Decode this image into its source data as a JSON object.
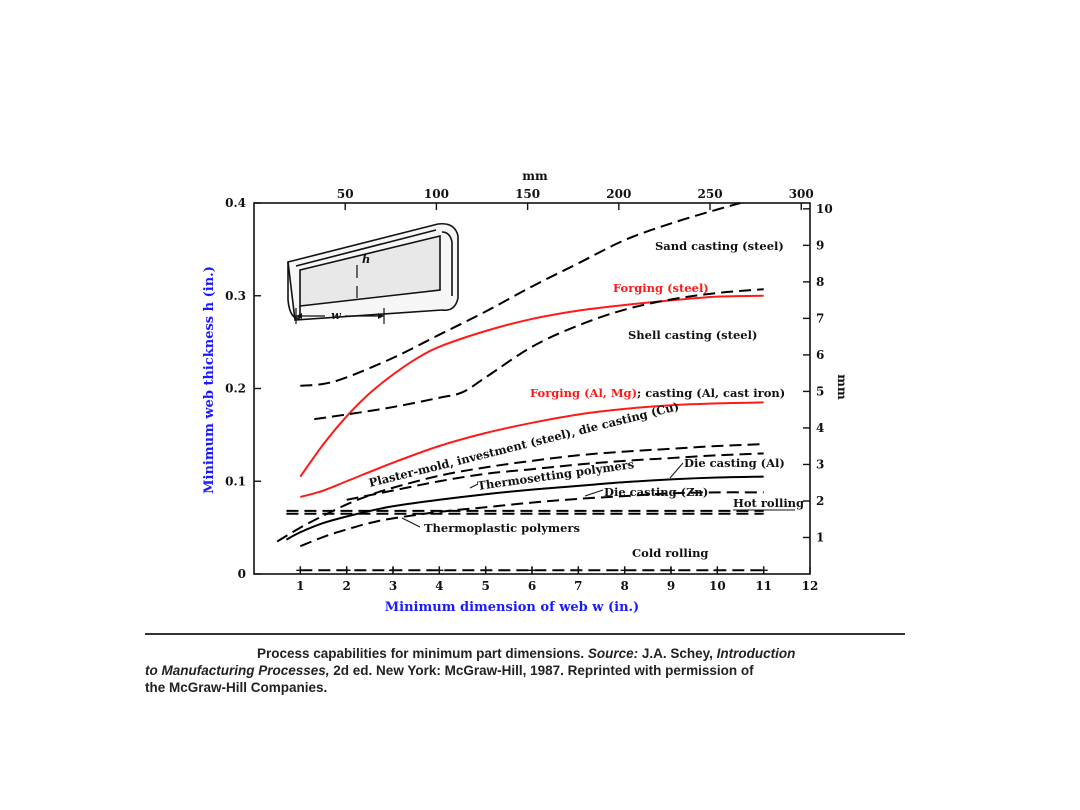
{
  "chart_data": {
    "type": "line",
    "xlabel": "Minimum dimension of web w (in.)",
    "ylabel": "Minimum web thickness h (in.)",
    "top_axis_unit": "mm",
    "right_axis_unit": "mm",
    "xlim": [
      0,
      12
    ],
    "ylim": [
      0,
      0.4
    ],
    "x_ticks": [
      "1",
      "2",
      "3",
      "4",
      "5",
      "6",
      "7",
      "8",
      "9",
      "10",
      "11",
      "12"
    ],
    "y_ticks": [
      "0",
      "0.1",
      "0.2",
      "0.3",
      "0.4"
    ],
    "top_ticks": [
      "50",
      "100",
      "150",
      "200",
      "250",
      "300"
    ],
    "right_ticks": [
      "1",
      "2",
      "3",
      "4",
      "5",
      "6",
      "7",
      "8",
      "9",
      "10"
    ],
    "inset_labels": {
      "h": "h",
      "w": "w"
    },
    "axis_color": "#1a1aff",
    "forging_color": "#ff1a1a",
    "series": [
      {
        "name": "Sand casting (steel)",
        "style": "dashed",
        "color": "#000000",
        "x": [
          1,
          1.5,
          2,
          3,
          4,
          5,
          6,
          7,
          8,
          9,
          10,
          10.5
        ],
        "y": [
          0.203,
          0.205,
          0.212,
          0.233,
          0.258,
          0.283,
          0.31,
          0.335,
          0.36,
          0.378,
          0.393,
          0.4
        ]
      },
      {
        "name": "Forging (steel)",
        "style": "solid",
        "color": "#ff1a1a",
        "x": [
          1,
          1.5,
          2,
          2.5,
          3,
          3.5,
          4,
          5,
          6,
          7,
          8,
          9,
          10,
          11
        ],
        "y": [
          0.105,
          0.14,
          0.17,
          0.195,
          0.215,
          0.232,
          0.245,
          0.262,
          0.275,
          0.284,
          0.29,
          0.295,
          0.299,
          0.3
        ]
      },
      {
        "name": "Shell casting (steel)",
        "style": "dashed",
        "color": "#000000",
        "x": [
          1.3,
          2,
          3,
          4,
          4.5,
          5,
          6,
          7,
          8,
          9,
          10,
          11
        ],
        "y": [
          0.167,
          0.172,
          0.18,
          0.19,
          0.196,
          0.212,
          0.245,
          0.268,
          0.285,
          0.296,
          0.303,
          0.307
        ]
      },
      {
        "name": "Forging (Al, Mg); casting (Al, cast iron)",
        "style": "solid",
        "color": "#ff1a1a",
        "x": [
          1,
          1.5,
          2,
          3,
          4,
          5,
          6,
          7,
          8,
          9,
          10,
          11
        ],
        "y": [
          0.083,
          0.09,
          0.1,
          0.12,
          0.138,
          0.152,
          0.163,
          0.172,
          0.178,
          0.182,
          0.184,
          0.185
        ]
      },
      {
        "name": "Plaster-mold, investment (steel), die casting (Cu)",
        "style": "dashed",
        "color": "#000000",
        "x": [
          0.5,
          1,
          1.5,
          2,
          2.5,
          3,
          4,
          5,
          6,
          7,
          8,
          9,
          10,
          11
        ],
        "y": [
          0.035,
          0.05,
          0.063,
          0.075,
          0.085,
          0.093,
          0.106,
          0.115,
          0.122,
          0.128,
          0.132,
          0.135,
          0.138,
          0.14
        ]
      },
      {
        "name": "Thermosetting polymers",
        "style": "dashed",
        "color": "#000000",
        "x": [
          2,
          3,
          4,
          5,
          6,
          7,
          8,
          9,
          10,
          11
        ],
        "y": [
          0.08,
          0.09,
          0.1,
          0.108,
          0.113,
          0.118,
          0.122,
          0.125,
          0.128,
          0.13
        ]
      },
      {
        "name": "Die casting (Al)",
        "style": "solid",
        "color": "#000000",
        "x": [
          0.7,
          1,
          1.5,
          2,
          2.5,
          3,
          4,
          5,
          6,
          7,
          8,
          9,
          10,
          11
        ],
        "y": [
          0.037,
          0.045,
          0.055,
          0.062,
          0.068,
          0.073,
          0.08,
          0.086,
          0.091,
          0.095,
          0.099,
          0.102,
          0.104,
          0.105
        ]
      },
      {
        "name": "Die casting (Zn)",
        "style": "dashed",
        "color": "#000000",
        "x": [
          1,
          1.5,
          2,
          2.5,
          3,
          4,
          5,
          6,
          7,
          8,
          9,
          10,
          11
        ],
        "y": [
          0.03,
          0.04,
          0.048,
          0.055,
          0.06,
          0.067,
          0.072,
          0.077,
          0.081,
          0.084,
          0.087,
          0.088,
          0.088
        ]
      },
      {
        "name": "Hot rolling",
        "style": "dashed",
        "color": "#000000",
        "x": [
          0.7,
          11
        ],
        "y": [
          0.065,
          0.065
        ]
      },
      {
        "name": "Thermoplastic polymers",
        "style": "dashed",
        "color": "#000000",
        "x": [
          0.7,
          11
        ],
        "y": [
          0.068,
          0.068
        ]
      },
      {
        "name": "Cold rolling",
        "style": "dashed-plus",
        "color": "#000000",
        "x": [
          1,
          11
        ],
        "y": [
          0.004,
          0.004
        ]
      }
    ],
    "annotations": [
      {
        "text": "Sand casting (steel)",
        "color": "#000000"
      },
      {
        "text": "Forging (steel)",
        "color": "#ff1a1a"
      },
      {
        "text": "Shell casting (steel)",
        "color": "#000000"
      },
      {
        "text": "Forging (Al, Mg)",
        "color": "#ff1a1a"
      },
      {
        "text": "; casting (Al, cast iron)",
        "color": "#000000"
      },
      {
        "text": "Plaster-mold, investment (steel), die casting (Cu)",
        "color": "#000000"
      },
      {
        "text": "Thermosetting polymers",
        "color": "#000000"
      },
      {
        "text": "Die casting (Al)",
        "color": "#000000"
      },
      {
        "text": "Die casting (Zn)",
        "color": "#000000"
      },
      {
        "text": "Hot rolling",
        "color": "#000000"
      },
      {
        "text": "Thermoplastic polymers",
        "color": "#000000"
      },
      {
        "text": "Cold rolling",
        "color": "#000000"
      }
    ]
  },
  "caption": {
    "line1_prefix": "Process capabilities for minimum part dimensions. ",
    "source_label": "Source:",
    "line1_mid": " J.A. Schey, ",
    "book_title_part1": "Introduction",
    "book_title_part2": "to Manufacturing Processes,",
    "line2_rest": " 2d ed. New York: McGraw-Hill, 1987. Reprinted with permission of",
    "line3": "the McGraw-Hill Companies."
  }
}
